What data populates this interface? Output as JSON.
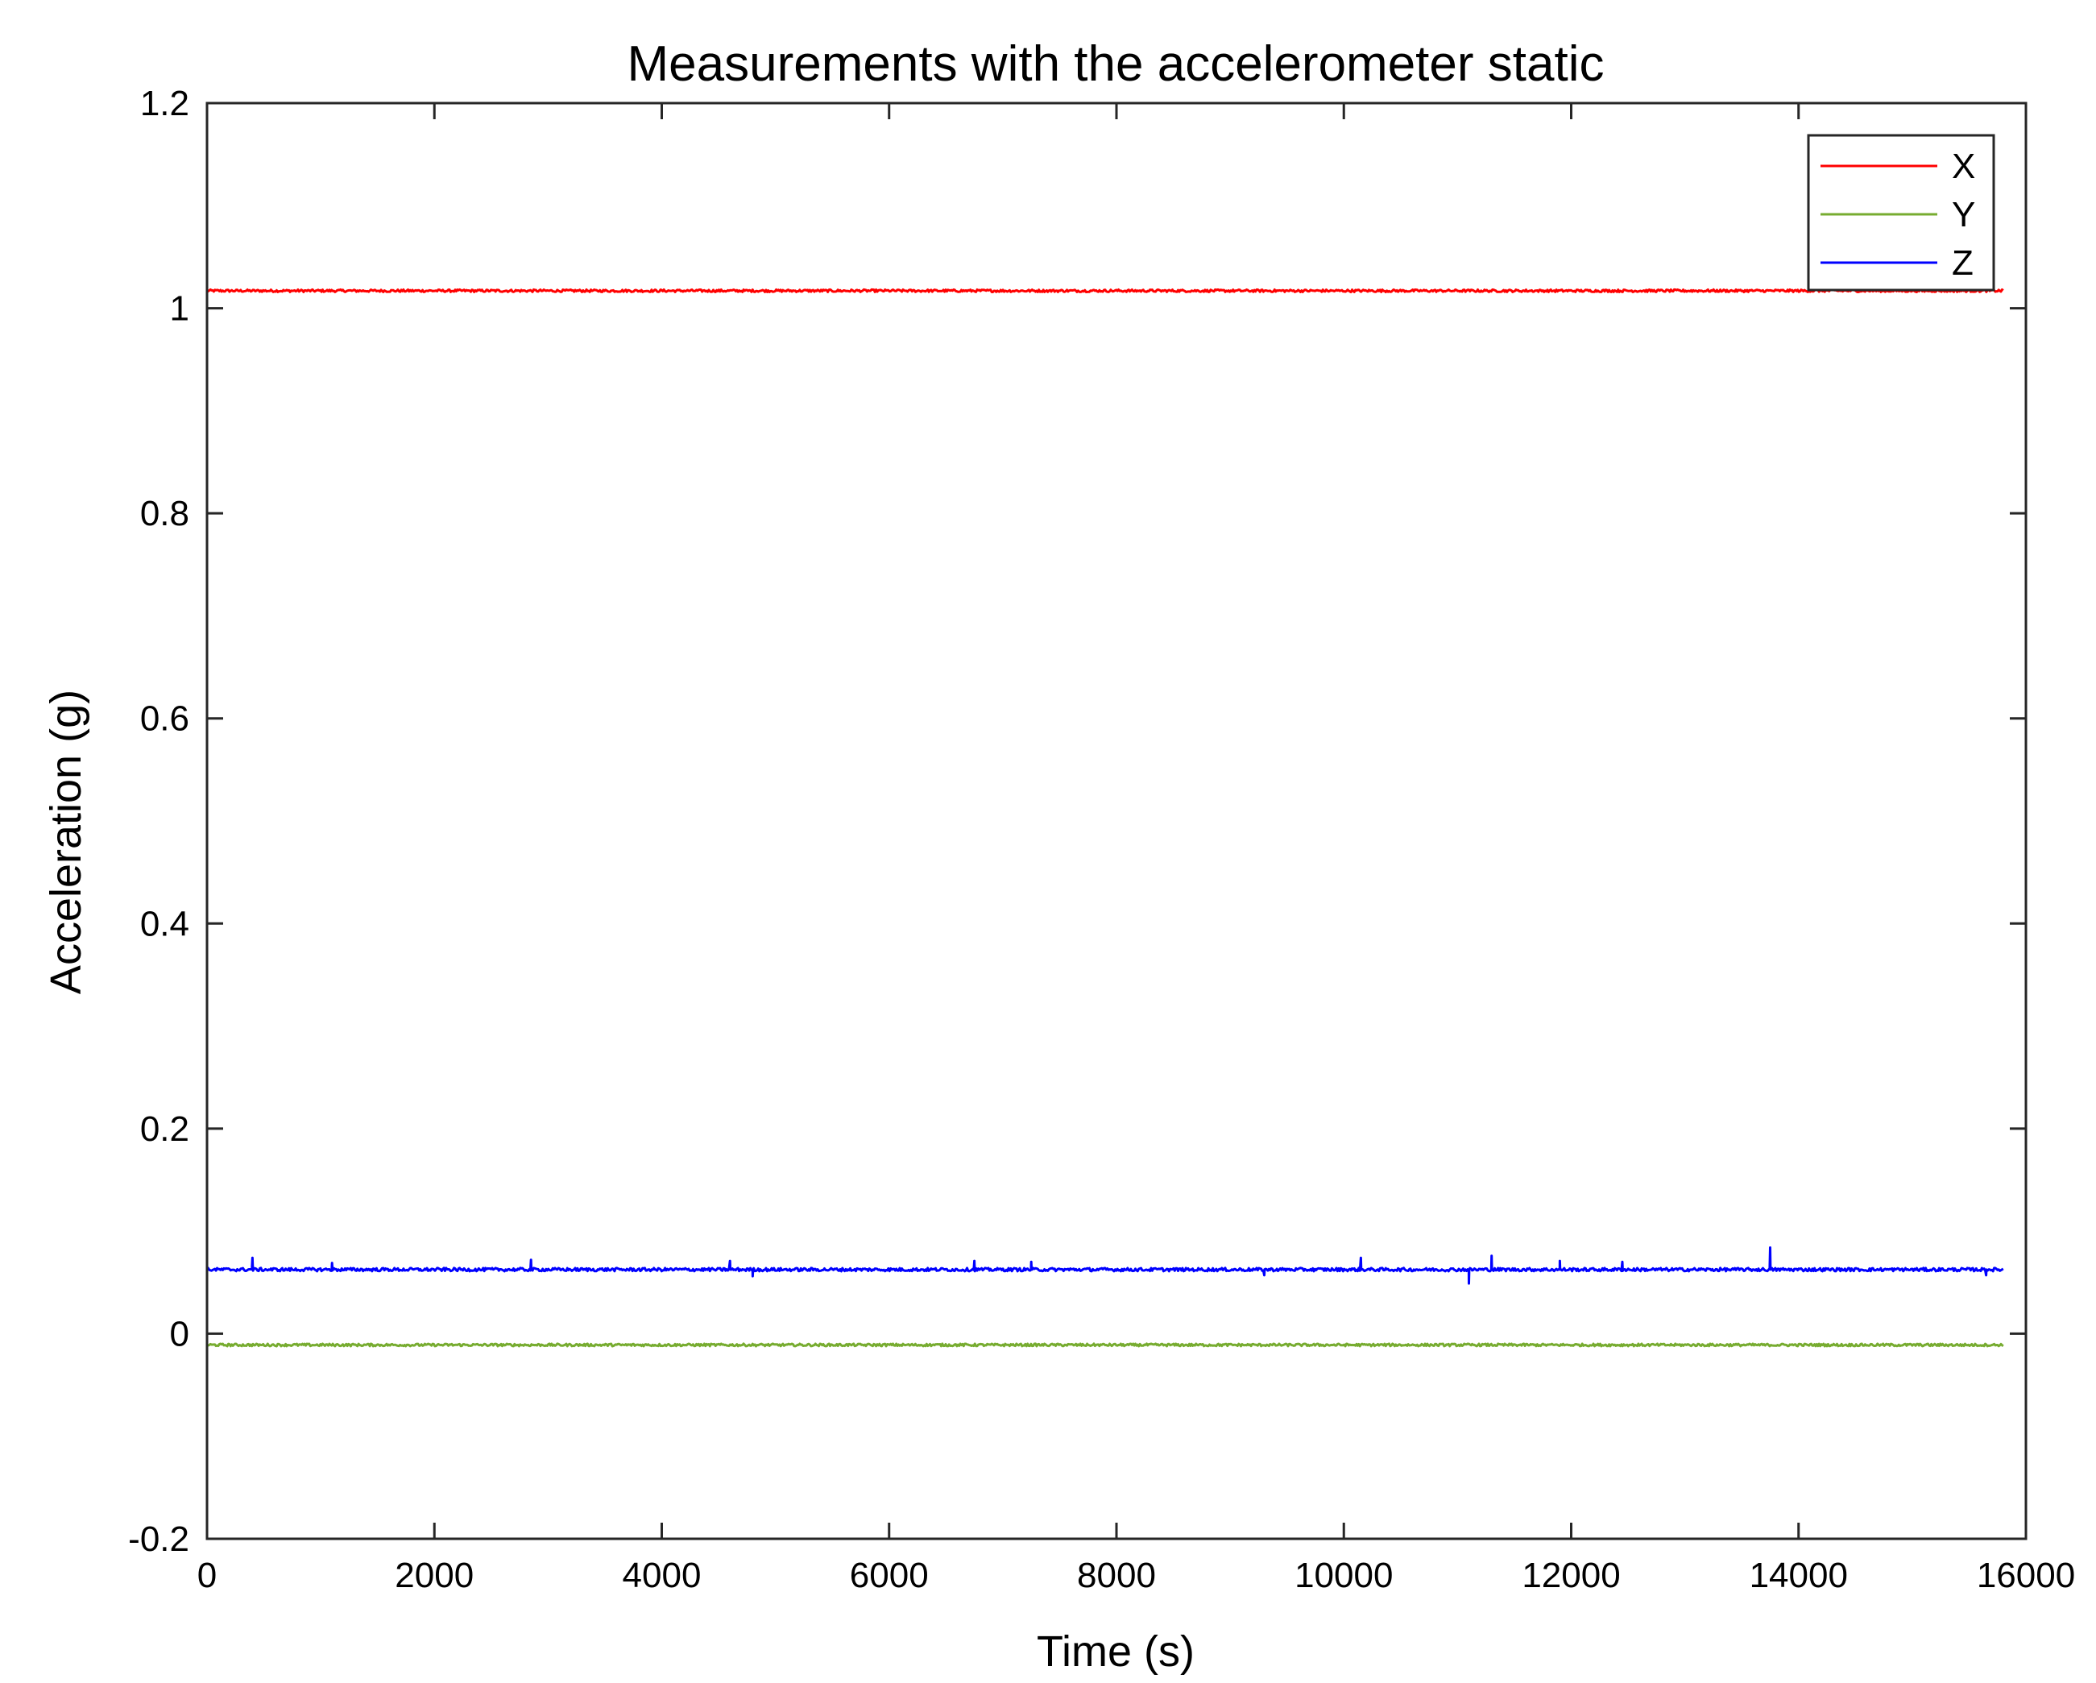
{
  "chart_data": {
    "type": "line",
    "title": "Measurements with the accelerometer static",
    "xlabel": "Time (s)",
    "ylabel": "Acceleration (g)",
    "xlim": [
      0,
      16000
    ],
    "ylim": [
      -0.2,
      1.2
    ],
    "xticks": [
      0,
      2000,
      4000,
      6000,
      8000,
      10000,
      12000,
      14000,
      16000
    ],
    "xtick_labels": [
      "0",
      "2000",
      "4000",
      "6000",
      "8000",
      "10000",
      "12000",
      "14000",
      "16000"
    ],
    "yticks": [
      -0.2,
      0,
      0.2,
      0.4,
      0.6,
      0.8,
      1.0,
      1.2
    ],
    "ytick_labels": [
      "-0.2",
      "0",
      "0.2",
      "0.4",
      "0.6",
      "0.8",
      "1",
      "1.2"
    ],
    "grid": false,
    "legend_position": "top-right",
    "x_range": [
      0,
      15800
    ],
    "series": [
      {
        "name": "X",
        "color": "#ff0000",
        "mean": 1.017,
        "noise": 0.0012,
        "spikes": []
      },
      {
        "name": "Y",
        "color": "#77ac30",
        "mean": -0.011,
        "noise": 0.0012,
        "spikes": []
      },
      {
        "name": "Z",
        "color": "#0000ff",
        "mean": 0.0625,
        "noise": 0.0016,
        "spikes": [
          {
            "x": 400,
            "y": 0.074
          },
          {
            "x": 1100,
            "y": 0.069
          },
          {
            "x": 2850,
            "y": 0.072
          },
          {
            "x": 4600,
            "y": 0.071
          },
          {
            "x": 4800,
            "y": 0.056
          },
          {
            "x": 6750,
            "y": 0.071
          },
          {
            "x": 7250,
            "y": 0.07
          },
          {
            "x": 9300,
            "y": 0.057
          },
          {
            "x": 10150,
            "y": 0.074
          },
          {
            "x": 11100,
            "y": 0.049
          },
          {
            "x": 11300,
            "y": 0.076
          },
          {
            "x": 11900,
            "y": 0.071
          },
          {
            "x": 12450,
            "y": 0.07
          },
          {
            "x": 13750,
            "y": 0.084
          },
          {
            "x": 15650,
            "y": 0.057
          }
        ]
      }
    ]
  }
}
